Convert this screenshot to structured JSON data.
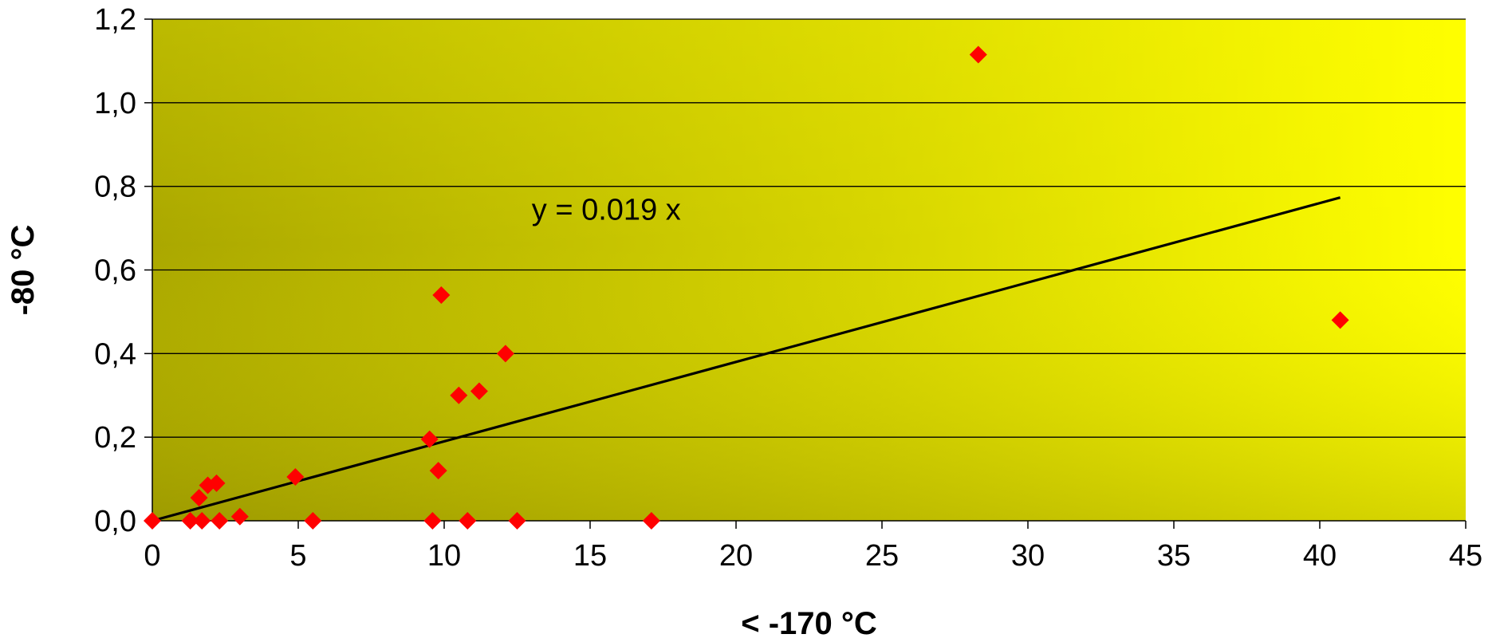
{
  "chart_data": {
    "type": "scatter",
    "title": "",
    "xlabel": "< -170 °C",
    "ylabel": "-80 °C",
    "xlim": [
      0,
      45
    ],
    "ylim": [
      0,
      1.2
    ],
    "x_ticks": [
      0,
      5,
      10,
      15,
      20,
      25,
      30,
      35,
      40,
      45
    ],
    "y_ticks": [
      0,
      0.2,
      0.4,
      0.6,
      0.8,
      1.0,
      1.2
    ],
    "x_tick_labels": [
      "0",
      "5",
      "10",
      "15",
      "20",
      "25",
      "30",
      "35",
      "40",
      "45"
    ],
    "y_tick_labels": [
      "0,0",
      "0,2",
      "0,4",
      "0,6",
      "0,8",
      "1,0",
      "1,2"
    ],
    "grid": "horizontal",
    "legend": "none",
    "colors": {
      "marker": "#ff0000",
      "trendline": "#000000",
      "bg_dark": "#a6a300",
      "bg_light": "#ffff00",
      "grid": "#000000"
    },
    "series": [
      {
        "marker": "diamond",
        "points": [
          [
            0.0,
            0.0
          ],
          [
            1.3,
            0.0
          ],
          [
            1.7,
            0.0
          ],
          [
            1.6,
            0.055
          ],
          [
            1.9,
            0.085
          ],
          [
            2.2,
            0.09
          ],
          [
            2.3,
            0.0
          ],
          [
            3.0,
            0.01
          ],
          [
            4.9,
            0.105
          ],
          [
            5.5,
            0.0
          ],
          [
            9.5,
            0.195
          ],
          [
            9.6,
            0.0
          ],
          [
            9.8,
            0.12
          ],
          [
            9.9,
            0.54
          ],
          [
            10.5,
            0.3
          ],
          [
            10.8,
            0.0
          ],
          [
            11.2,
            0.31
          ],
          [
            12.1,
            0.4
          ],
          [
            12.5,
            0.0
          ],
          [
            17.1,
            0.0
          ],
          [
            28.3,
            1.115
          ],
          [
            40.7,
            0.48
          ]
        ]
      }
    ],
    "trendline": {
      "slope": 0.019,
      "x_start": 0,
      "x_end": 40.7
    },
    "annotations": [
      {
        "text": "y = 0.019 x",
        "x": 13.0,
        "y": 0.72
      }
    ]
  }
}
